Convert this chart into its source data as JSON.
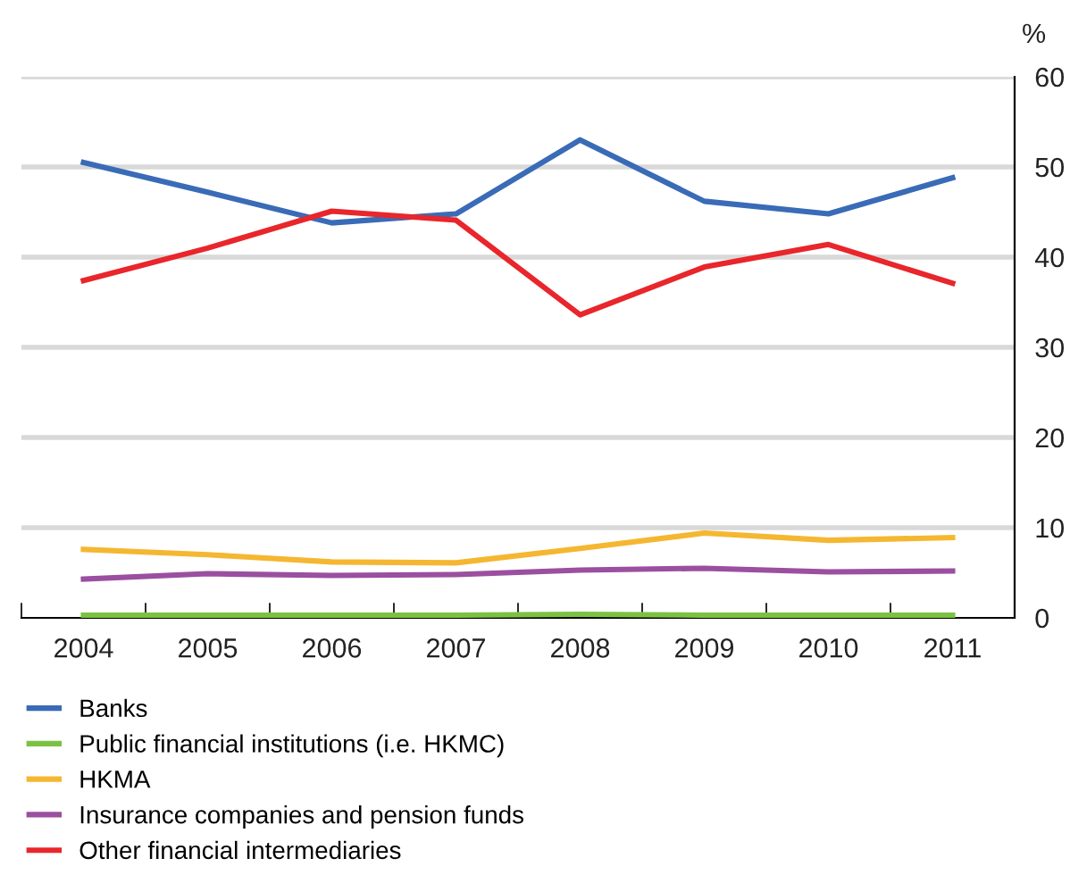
{
  "chart_data": {
    "type": "line",
    "ylabel": "%",
    "categories": [
      "2004",
      "2005",
      "2006",
      "2007",
      "2008",
      "2009",
      "2010",
      "2011"
    ],
    "series": [
      {
        "name": "Banks",
        "color": "#3a6bb7",
        "values": [
          50.5,
          47.2,
          43.8,
          44.8,
          53.0,
          46.2,
          44.8,
          48.8
        ]
      },
      {
        "name": "Public financial institutions (i.e. HKMC)",
        "color": "#7cc242",
        "values": [
          0.3,
          0.3,
          0.3,
          0.3,
          0.4,
          0.3,
          0.3,
          0.3
        ]
      },
      {
        "name": "HKMA",
        "color": "#f5b731",
        "values": [
          7.6,
          7.0,
          6.2,
          6.1,
          7.7,
          9.4,
          8.6,
          8.9
        ]
      },
      {
        "name": "Insurance companies and pension funds",
        "color": "#9b4fa0",
        "values": [
          4.3,
          4.9,
          4.7,
          4.8,
          5.3,
          5.5,
          5.1,
          5.2
        ]
      },
      {
        "name": "Other financial intermediaries",
        "color": "#e8262b",
        "values": [
          37.4,
          41.0,
          45.1,
          44.1,
          33.6,
          38.9,
          41.4,
          37.1
        ]
      }
    ],
    "ylim": [
      0,
      60
    ],
    "yticks": [
      0,
      10,
      20,
      30,
      40,
      50,
      60
    ],
    "grid": "y",
    "legend": "bottom",
    "marker": "none",
    "line_style": "solid"
  }
}
